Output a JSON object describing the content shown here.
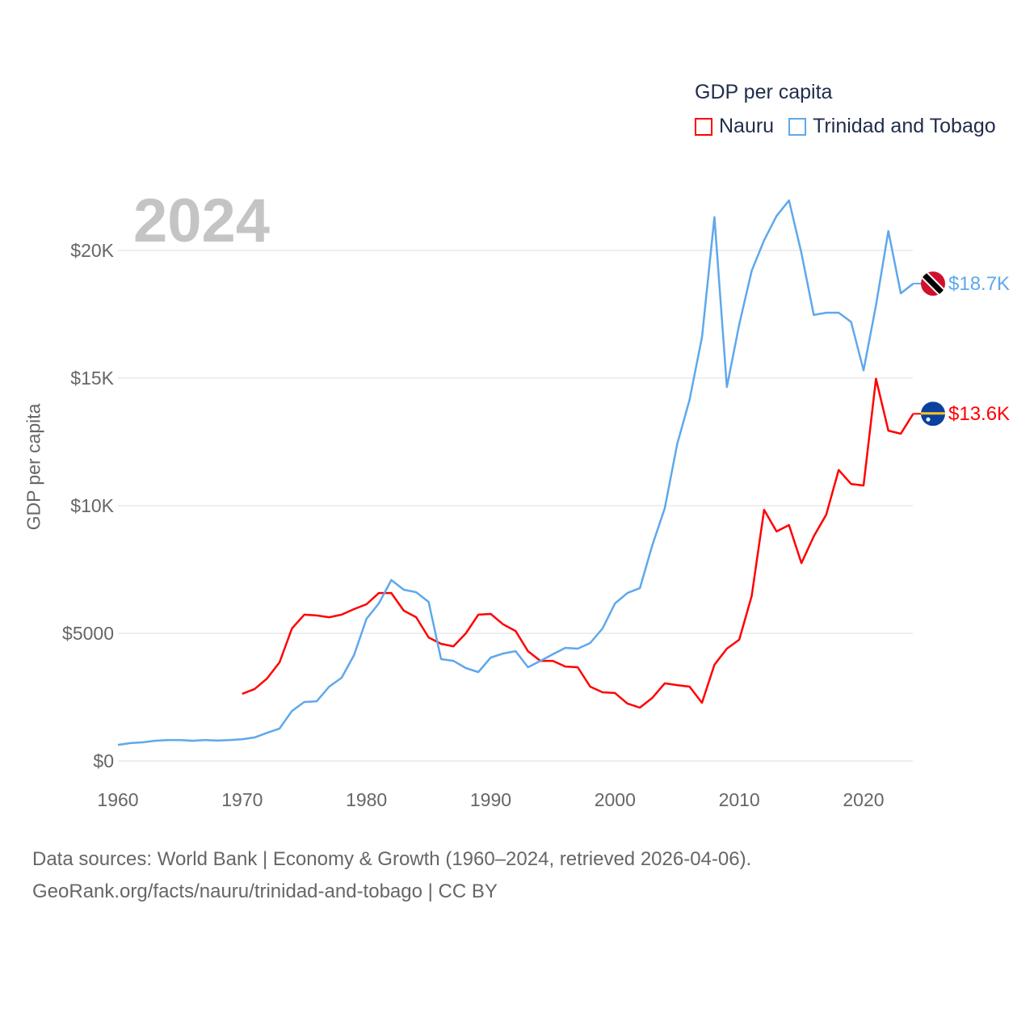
{
  "chart_data": {
    "type": "line",
    "title": "GDP per capita",
    "overlay_year": "2024",
    "xlabel": "",
    "ylabel": "GDP per capita",
    "xlim": [
      1960,
      2024
    ],
    "ylim": [
      0,
      22000
    ],
    "x_ticks": [
      1960,
      1970,
      1980,
      1990,
      2000,
      2010,
      2020
    ],
    "x_tick_labels": [
      "1960",
      "1970",
      "1980",
      "1990",
      "2000",
      "2010",
      "2020"
    ],
    "y_ticks": [
      0,
      5000,
      10000,
      15000,
      20000
    ],
    "y_tick_labels": [
      "$0",
      "$5000",
      "$10K",
      "$15K",
      "$20K"
    ],
    "grid": true,
    "legend_position": "top-right",
    "series": [
      {
        "name": "Nauru",
        "color": "#ff0000",
        "end_label": "$13.6K",
        "flag": "nauru-flag",
        "start_year": 1970,
        "values": [
          2630,
          2820,
          3230,
          3860,
          5190,
          5730,
          5700,
          5630,
          5730,
          5950,
          6140,
          6580,
          6580,
          5890,
          5630,
          4840,
          4590,
          4490,
          5000,
          5730,
          5760,
          5350,
          5090,
          4300,
          3920,
          3920,
          3700,
          3670,
          2910,
          2690,
          2660,
          2250,
          2090,
          2470,
          3040,
          2970,
          2910,
          2280,
          3770,
          4400,
          4750,
          6460,
          9840,
          8990,
          9240,
          7750,
          8800,
          9650,
          11400,
          10850,
          10790,
          14970,
          12940,
          12820,
          13600
        ]
      },
      {
        "name": "Trinidad and Tobago",
        "color": "#5ea8ec",
        "end_label": "$18.7K",
        "flag": "trinidad-and-tobago-flag",
        "start_year": 1960,
        "values": [
          630,
          700,
          730,
          790,
          820,
          820,
          790,
          820,
          800,
          820,
          850,
          920,
          1100,
          1270,
          1960,
          2310,
          2340,
          2910,
          3260,
          4150,
          5570,
          6170,
          7090,
          6710,
          6610,
          6230,
          3990,
          3920,
          3640,
          3480,
          4050,
          4210,
          4300,
          3670,
          3920,
          4180,
          4430,
          4400,
          4620,
          5190,
          6170,
          6580,
          6770,
          8450,
          9900,
          12400,
          14150,
          16600,
          21300,
          14650,
          17100,
          19200,
          20400,
          21350,
          21960,
          19900,
          17470,
          17560,
          17560,
          17200,
          15300,
          17850,
          20760,
          18320,
          18700
        ]
      }
    ]
  },
  "footer": {
    "line1": "Data sources: World Bank | Economy & Growth (1960–2024, retrieved 2026-04-06).",
    "line2": "GeoRank.org/facts/nauru/trinidad-and-tobago | CC BY"
  }
}
